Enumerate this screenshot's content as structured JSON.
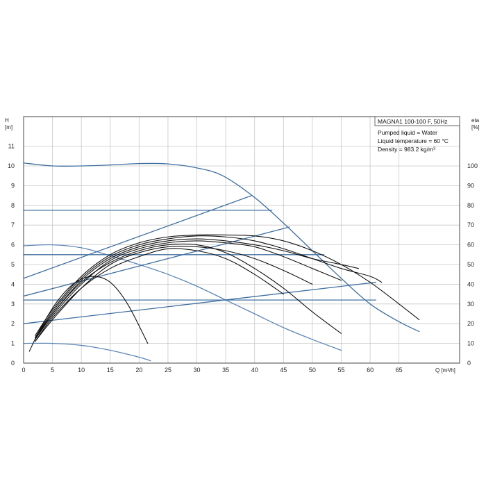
{
  "chart_data": {
    "type": "line",
    "title": "MAGNA1 100-100 F, 50Hz",
    "info": [
      "Pumped liquid = Water",
      "Liquid temperature = 60 °C",
      "Density = 983.2 kg/m³"
    ],
    "y_label_left": "H",
    "y_unit_left": "[m]",
    "y_label_right": "eta",
    "y_unit_right": "[%]",
    "x_label": "Q [m³/h]",
    "xlim": [
      0,
      75.5
    ],
    "ylim_left": [
      0,
      12.5
    ],
    "ylim_right": [
      0,
      125
    ],
    "x_ticks": [
      0,
      5,
      10,
      15,
      20,
      25,
      30,
      35,
      40,
      45,
      50,
      55,
      60,
      65
    ],
    "y_ticks_left": [
      0,
      1,
      2,
      3,
      4,
      5,
      6,
      7,
      8,
      9,
      10,
      11
    ],
    "y_ticks_right": [
      0,
      10,
      20,
      30,
      40,
      50,
      60,
      70,
      80,
      90,
      100
    ],
    "grid": true,
    "colors": {
      "blue": "#3f6f9f",
      "light_blue": "#5b86b5",
      "black": "#111111",
      "gray": "#444444"
    },
    "series": [
      {
        "axis": "left",
        "color": "blue",
        "x": [
          0,
          5,
          10,
          15,
          20,
          25,
          30,
          34.5,
          40,
          45,
          50,
          55,
          60,
          65,
          68.5
        ],
        "y": [
          10.15,
          10.0,
          10.0,
          10.05,
          10.12,
          10.1,
          9.9,
          9.5,
          8.4,
          7.1,
          5.7,
          4.3,
          3.0,
          2.1,
          1.6
        ]
      },
      {
        "axis": "left",
        "color": "light_blue",
        "x": [
          0,
          5,
          10,
          15,
          20,
          25,
          30,
          35,
          40,
          45,
          50,
          55
        ],
        "y": [
          5.95,
          6.0,
          5.85,
          5.45,
          5.0,
          4.5,
          3.9,
          3.2,
          2.5,
          1.8,
          1.2,
          0.65
        ]
      },
      {
        "axis": "left",
        "color": "light_blue",
        "x": [
          0,
          5,
          10,
          15,
          20,
          22
        ],
        "y": [
          1.0,
          1.0,
          0.9,
          0.65,
          0.3,
          0.12
        ]
      },
      {
        "axis": "left",
        "color": "blue",
        "x": [
          0,
          43
        ],
        "y": [
          7.75,
          7.75
        ]
      },
      {
        "axis": "left",
        "color": "blue",
        "x": [
          0,
          52
        ],
        "y": [
          5.5,
          5.5
        ]
      },
      {
        "axis": "left",
        "color": "blue",
        "x": [
          0,
          61
        ],
        "y": [
          3.2,
          3.2
        ]
      },
      {
        "axis": "left",
        "color": "blue",
        "x": [
          0,
          39.5
        ],
        "y": [
          4.3,
          8.5
        ]
      },
      {
        "axis": "left",
        "color": "blue",
        "x": [
          0,
          46
        ],
        "y": [
          3.4,
          6.9
        ]
      },
      {
        "axis": "left",
        "color": "blue",
        "x": [
          0,
          61
        ],
        "y": [
          2.0,
          4.1
        ]
      },
      {
        "axis": "right",
        "color": "black",
        "x": [
          2,
          5,
          10,
          15,
          20,
          25,
          30,
          35,
          40,
          45,
          50,
          55,
          60,
          65,
          68.5
        ],
        "y": [
          14,
          27,
          44,
          55,
          61,
          64,
          65,
          65,
          64.5,
          62,
          57,
          50,
          41,
          30,
          22
        ]
      },
      {
        "axis": "right",
        "color": "black",
        "x": [
          2,
          5,
          10,
          15,
          20,
          25,
          30,
          35,
          40,
          45,
          50,
          55,
          60,
          62
        ],
        "y": [
          13,
          26,
          43,
          54,
          60,
          63,
          64.5,
          64,
          62,
          58,
          53,
          48,
          44,
          41
        ]
      },
      {
        "axis": "right",
        "color": "black",
        "x": [
          2,
          5,
          10,
          15,
          20,
          25,
          30,
          35,
          40,
          45,
          50,
          55,
          58
        ],
        "y": [
          13,
          25,
          42,
          53,
          59,
          62,
          63,
          62,
          60,
          57,
          53,
          50,
          48
        ]
      },
      {
        "axis": "right",
        "color": "black",
        "x": [
          2,
          5,
          10,
          15,
          20,
          25,
          30,
          35,
          40,
          45,
          50,
          55
        ],
        "y": [
          12,
          24,
          40,
          52,
          58,
          61,
          62,
          61,
          59,
          54,
          48,
          42
        ]
      },
      {
        "axis": "right",
        "color": "black",
        "x": [
          2,
          5,
          10,
          15,
          20,
          25,
          30,
          35,
          40,
          45,
          50
        ],
        "y": [
          11,
          22,
          38,
          50,
          56,
          59,
          59,
          57,
          53,
          47,
          40
        ]
      },
      {
        "axis": "right",
        "color": "black",
        "x": [
          2,
          5,
          10,
          15,
          20,
          25,
          30,
          35,
          40,
          45,
          50,
          55
        ],
        "y": [
          12,
          25,
          41,
          51,
          57,
          60,
          60,
          56,
          48,
          38,
          26,
          15
        ]
      },
      {
        "axis": "right",
        "color": "black",
        "x": [
          2,
          5,
          10,
          15,
          20,
          25,
          30,
          35,
          40,
          45
        ],
        "y": [
          11,
          23,
          38,
          48,
          54,
          58,
          57,
          53,
          45,
          35
        ]
      },
      {
        "axis": "right",
        "color": "black",
        "x": [
          1,
          3,
          6,
          9,
          12,
          15,
          18,
          21.5
        ],
        "y": [
          6,
          18,
          32,
          41,
          44,
          41,
          30,
          10
        ]
      }
    ]
  }
}
